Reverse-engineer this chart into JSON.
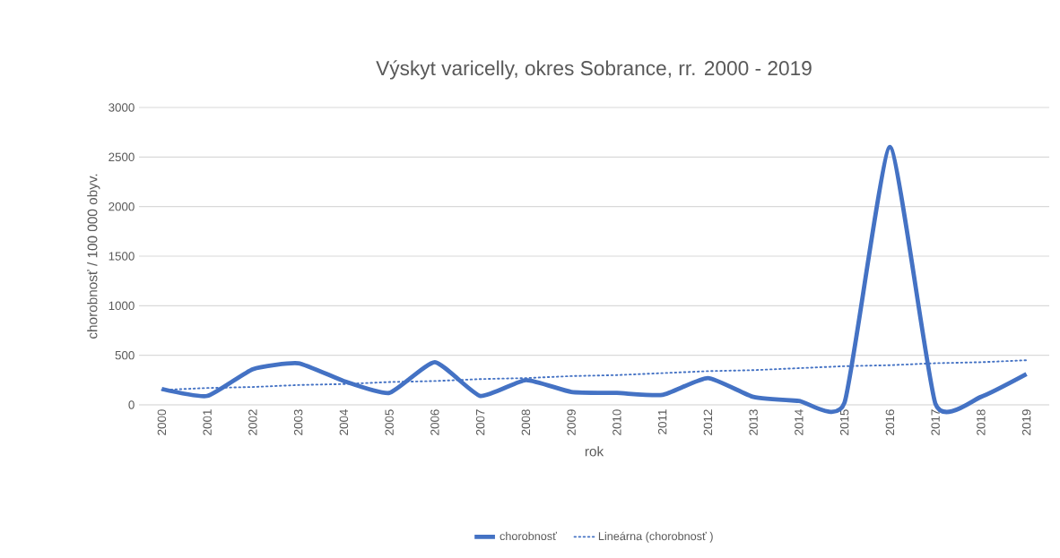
{
  "chart_data": {
    "type": "line",
    "title": "Výskyt varicelly, okres Sobrance,  rr. 2000 - 2019",
    "xlabel": "rok",
    "ylabel": "chorobnosť / 100 000 obyv.",
    "categories": [
      "2000",
      "2001",
      "2002",
      "2003",
      "2004",
      "2005",
      "2006",
      "2007",
      "2008",
      "2009",
      "2010",
      "2011",
      "2012",
      "2013",
      "2014",
      "2015",
      "2016",
      "2017",
      "2018",
      "2019"
    ],
    "series": [
      {
        "name": "chorobnosť",
        "color": "#4472c4",
        "line_style": "solid",
        "values": [
          160,
          90,
          360,
          420,
          240,
          120,
          430,
          90,
          250,
          130,
          120,
          100,
          270,
          80,
          40,
          20,
          2600,
          10,
          80,
          310
        ]
      },
      {
        "name": "Lineárna (chorobnosť )",
        "color": "#4472c4",
        "line_style": "dotted",
        "values": [
          150,
          170,
          180,
          200,
          210,
          230,
          240,
          260,
          270,
          290,
          300,
          320,
          340,
          350,
          370,
          390,
          400,
          420,
          430,
          450
        ]
      }
    ],
    "ylim": [
      0,
      3000
    ],
    "yticks": [
      0,
      500,
      1000,
      1500,
      2000,
      2500,
      3000
    ],
    "grid": "y",
    "legend": "bottom"
  }
}
